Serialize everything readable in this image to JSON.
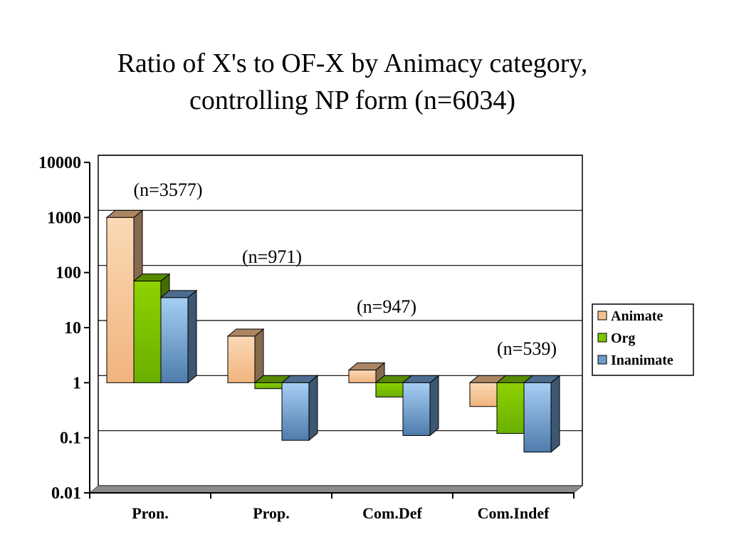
{
  "slide": {
    "title_line1": "Ratio of X's to OF-X  by Animacy category,",
    "title_line2": "controlling NP form  (n=6034)"
  },
  "chart_data": {
    "type": "bar",
    "style": "3d-clustered",
    "y_scale": "log",
    "ylim": [
      0.01,
      10000
    ],
    "yticks": [
      "0.01",
      "0.1",
      "1",
      "10",
      "100",
      "1000",
      "10000"
    ],
    "grid": true,
    "legend_position": "right",
    "categories": [
      "Pron.",
      "Prop.",
      "Com.Def",
      "Com.Indef"
    ],
    "category_counts": [
      "(n=3577)",
      "(n=971)",
      "(n=947)",
      "(n=539)"
    ],
    "series": [
      {
        "name": "Animate",
        "color": "#f4c08f",
        "values": [
          1000,
          7,
          1.7,
          0.37
        ]
      },
      {
        "name": "Org",
        "color": "#7cc500",
        "values": [
          70,
          0.78,
          0.55,
          0.12
        ]
      },
      {
        "name": "Inanimate",
        "color": "#6e9ccd",
        "values": [
          35,
          0.09,
          0.11,
          0.055
        ]
      }
    ]
  }
}
